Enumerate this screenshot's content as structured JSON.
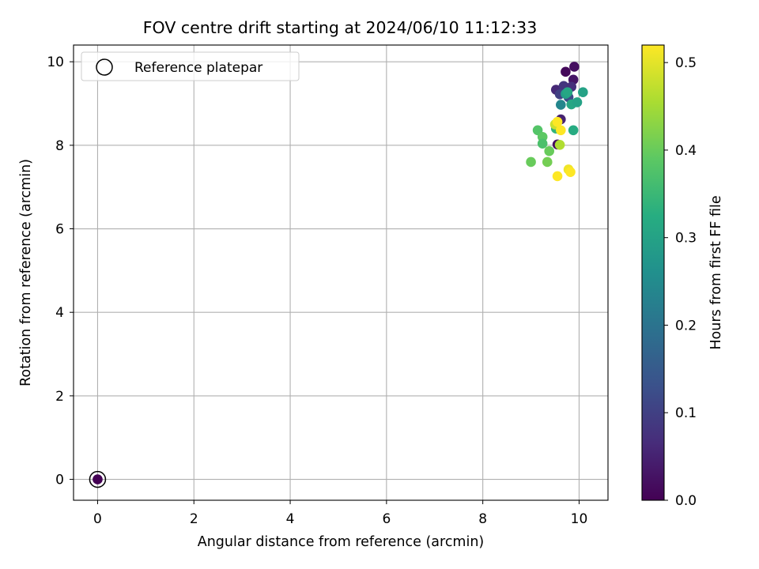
{
  "chart_data": {
    "type": "scatter",
    "title": "FOV centre drift starting at 2024/06/10 11:12:33",
    "xlabel": "Angular distance from reference (arcmin)",
    "ylabel": "Rotation from reference (arcmin)",
    "xlim": [
      -0.5,
      10.6
    ],
    "ylim": [
      -0.5,
      10.4
    ],
    "xticks": [
      0,
      2,
      4,
      6,
      8,
      10
    ],
    "yticks": [
      0,
      2,
      4,
      6,
      8,
      10
    ],
    "grid": true,
    "legend": {
      "placement": "top-left",
      "entries": [
        "Reference platepar"
      ]
    },
    "reference_point": {
      "label": "Reference platepar",
      "x": 0,
      "y": 0,
      "value": 0.0
    },
    "colorbar": {
      "label": "Hours from first FF file",
      "colormap": "viridis",
      "range": [
        0.0,
        0.52
      ],
      "ticks": [
        "0.0",
        "0.1",
        "0.2",
        "0.3",
        "0.4",
        "0.5"
      ],
      "tick_values": [
        0.0,
        0.1,
        0.2,
        0.3,
        0.4,
        0.5
      ]
    },
    "points": [
      {
        "x": 9.9,
        "y": 9.88,
        "c": 0.02
      },
      {
        "x": 9.72,
        "y": 9.76,
        "c": 0.01
      },
      {
        "x": 9.88,
        "y": 9.57,
        "c": 0.03
      },
      {
        "x": 9.52,
        "y": 9.33,
        "c": 0.06
      },
      {
        "x": 9.68,
        "y": 9.42,
        "c": 0.08
      },
      {
        "x": 9.84,
        "y": 9.4,
        "c": 0.07
      },
      {
        "x": 9.6,
        "y": 9.22,
        "c": 0.1
      },
      {
        "x": 9.78,
        "y": 9.15,
        "c": 0.12
      },
      {
        "x": 9.62,
        "y": 8.97,
        "c": 0.24
      },
      {
        "x": 9.72,
        "y": 9.23,
        "c": 0.29
      },
      {
        "x": 9.76,
        "y": 9.27,
        "c": 0.31
      },
      {
        "x": 10.08,
        "y": 9.27,
        "c": 0.3
      },
      {
        "x": 9.84,
        "y": 8.98,
        "c": 0.31
      },
      {
        "x": 9.96,
        "y": 9.03,
        "c": 0.3
      },
      {
        "x": 9.62,
        "y": 8.62,
        "c": 0.05
      },
      {
        "x": 9.55,
        "y": 8.02,
        "c": 0.02
      },
      {
        "x": 9.88,
        "y": 8.36,
        "c": 0.32
      },
      {
        "x": 9.52,
        "y": 8.4,
        "c": 0.34
      },
      {
        "x": 9.14,
        "y": 8.36,
        "c": 0.38
      },
      {
        "x": 9.24,
        "y": 8.2,
        "c": 0.39
      },
      {
        "x": 9.24,
        "y": 8.04,
        "c": 0.37
      },
      {
        "x": 9.38,
        "y": 7.86,
        "c": 0.4
      },
      {
        "x": 9.0,
        "y": 7.6,
        "c": 0.4
      },
      {
        "x": 9.34,
        "y": 7.6,
        "c": 0.41
      },
      {
        "x": 9.6,
        "y": 8.01,
        "c": 0.46
      },
      {
        "x": 9.5,
        "y": 8.5,
        "c": 0.48
      },
      {
        "x": 9.55,
        "y": 8.56,
        "c": 0.52
      },
      {
        "x": 9.62,
        "y": 8.36,
        "c": 0.52
      },
      {
        "x": 9.78,
        "y": 7.42,
        "c": 0.51
      },
      {
        "x": 9.82,
        "y": 7.36,
        "c": 0.52
      },
      {
        "x": 9.55,
        "y": 7.26,
        "c": 0.52
      }
    ]
  }
}
